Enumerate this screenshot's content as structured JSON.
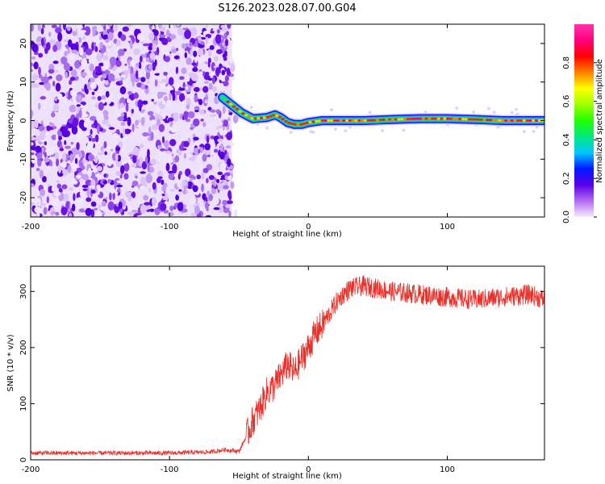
{
  "title": "S126.2023.028.07.00.G04",
  "chart_data": [
    {
      "type": "heatmap",
      "xlabel": "Height of straight line (km)",
      "ylabel": "Frequency (Hz)",
      "xlim": [
        -200,
        170
      ],
      "ylim": [
        -25,
        25
      ],
      "xticks": [
        -200,
        -100,
        0,
        100
      ],
      "yticks": [
        -20,
        -10,
        0,
        10,
        20
      ],
      "noise_region_x": [
        -200,
        -55
      ],
      "signal_track": {
        "x": [
          -62,
          -55,
          -48,
          -40,
          -30,
          -24,
          -20,
          -15,
          -10,
          -5,
          0,
          10,
          20,
          40,
          60,
          80,
          100,
          120,
          140,
          160,
          170
        ],
        "y": [
          6,
          4,
          2,
          0.5,
          0.8,
          1.5,
          0.8,
          -0.5,
          -1,
          -1,
          -0.5,
          0,
          0,
          0,
          0.3,
          0.5,
          0.5,
          0.3,
          0,
          0,
          0
        ]
      },
      "colorbar": {
        "label": "Normalized spectral amplitude",
        "range": [
          0,
          1
        ],
        "ticks": [
          "0.0",
          "0.2",
          "0.4",
          "0.6",
          "0.8"
        ],
        "colors": [
          "#f4ecfb",
          "#b46cf0",
          "#5a00e8",
          "#0018ff",
          "#00c8ff",
          "#00e880",
          "#20ff00",
          "#a0ff00",
          "#ffff00",
          "#ff8000",
          "#ff0000",
          "#ff0080",
          "#ff33aa"
        ]
      }
    },
    {
      "type": "line",
      "xlabel": "Height of straight line (km)",
      "ylabel": "SNR (10 * v/v)",
      "xlim": [
        -200,
        170
      ],
      "ylim": [
        0,
        345
      ],
      "xticks": [
        -200,
        -100,
        0,
        100
      ],
      "yticks": [
        0,
        100,
        200,
        300
      ],
      "series": [
        {
          "color": "#e8302a",
          "x": [
            -200,
            -150,
            -100,
            -70,
            -60,
            -50,
            -45,
            -40,
            -35,
            -30,
            -25,
            -20,
            -15,
            -10,
            -5,
            0,
            5,
            10,
            15,
            20,
            25,
            30,
            40,
            50,
            60,
            80,
            100,
            120,
            140,
            160,
            170
          ],
          "y": [
            12,
            12,
            12,
            14,
            18,
            15,
            40,
            70,
            90,
            120,
            130,
            150,
            170,
            155,
            180,
            200,
            225,
            240,
            260,
            280,
            295,
            305,
            310,
            305,
            300,
            295,
            290,
            285,
            290,
            295,
            285
          ]
        }
      ]
    }
  ]
}
